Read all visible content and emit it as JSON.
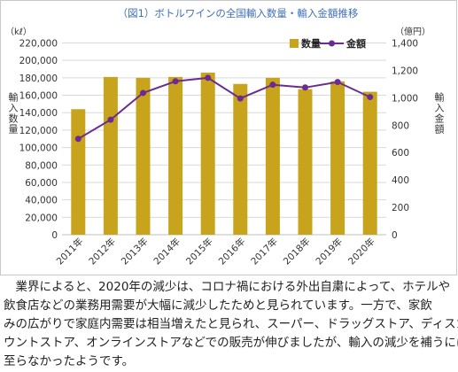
{
  "chart_data": {
    "type": "bar",
    "title": "（図1）ボトルワインの全国輸入数量・輸入金額推移",
    "categories": [
      "2011年",
      "2012年",
      "2013年",
      "2014年",
      "2015年",
      "2016年",
      "2017年",
      "2018年",
      "2019年",
      "2020年"
    ],
    "series": [
      {
        "name": "数量",
        "type": "bar",
        "axis": "left",
        "values": [
          144000,
          181000,
          180000,
          181000,
          186000,
          173000,
          180000,
          167000,
          176000,
          164000
        ]
      },
      {
        "name": "金額",
        "type": "line",
        "axis": "right",
        "values": [
          700,
          840,
          1035,
          1120,
          1145,
          995,
          1095,
          1075,
          1115,
          1005
        ]
      }
    ],
    "ylabel": "輸入数量",
    "y_unit": "（kℓ）",
    "ylim": [
      0,
      220000
    ],
    "y_ticks": [
      "0",
      "20,000",
      "40,000",
      "60,000",
      "80,000",
      "100,000",
      "120,000",
      "140,000",
      "160,000",
      "180,000",
      "200,000",
      "220,000"
    ],
    "y2label": "輸入金額",
    "y2_unit": "（億円）",
    "y2lim": [
      0,
      1400
    ],
    "y2_ticks": [
      "0",
      "200",
      "400",
      "600",
      "800",
      "1,000",
      "1,200",
      "1,400"
    ],
    "grid": true,
    "legend_position": "top-right",
    "colors": {
      "bar": "#C8A41C",
      "line": "#6B2C91",
      "title": "#3F6FB6",
      "grid": "#D9D9D9",
      "frame": "#C8C8C8"
    }
  },
  "paragraph": {
    "lines": [
      "　業界によると、2020年の減少は、コロナ禍における外出自粛によって、ホテルや",
      "飲食店などの業務用需要が大幅に減少したためと見られています。一方で、家飲",
      "みの広がりで家庭内需要は相当増えたと見られ、スーパー、ドラッグストア、ディスカ",
      "ウントストア、オンラインストアなどでの販売が伸びましたが、輸入の減少を補うには",
      "至らなかったようです。"
    ]
  }
}
